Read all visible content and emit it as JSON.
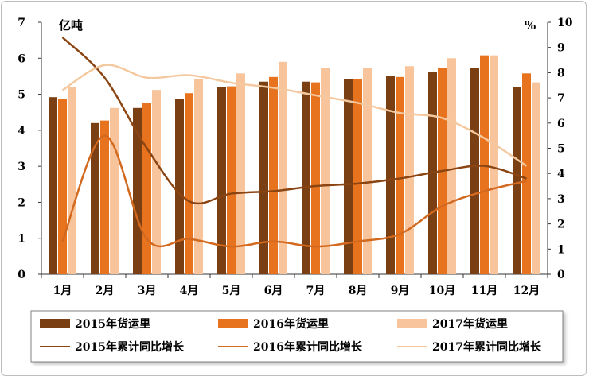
{
  "chart_data": {
    "type": "bar+line",
    "left_unit": "亿吨",
    "right_unit": "%",
    "ylim_left": [
      0,
      7
    ],
    "ylim_right": [
      0,
      10
    ],
    "left_ticks": [
      "0",
      "1",
      "2",
      "3",
      "4",
      "5",
      "6",
      "7"
    ],
    "right_ticks": [
      "0",
      "1",
      "2",
      "3",
      "4",
      "5",
      "6",
      "7",
      "8",
      "9",
      "10"
    ],
    "categories": [
      "1月",
      "2月",
      "3月",
      "4月",
      "5月",
      "6月",
      "7月",
      "8月",
      "9月",
      "10月",
      "11月",
      "12月"
    ],
    "bar_series": [
      {
        "name": "2015年货运里",
        "color": "#7a3f13",
        "values": [
          4.92,
          4.2,
          4.62,
          4.87,
          5.2,
          5.35,
          5.35,
          5.43,
          5.52,
          5.62,
          5.72,
          5.2
        ]
      },
      {
        "name": "2016年货运里",
        "color": "#e8731e",
        "values": [
          4.88,
          4.27,
          4.75,
          5.03,
          5.22,
          5.48,
          5.33,
          5.42,
          5.48,
          5.73,
          6.08,
          5.58
        ]
      },
      {
        "name": "2017年货运里",
        "color": "#f8c49c",
        "values": [
          5.2,
          4.62,
          5.12,
          5.43,
          5.58,
          5.9,
          5.73,
          5.73,
          5.78,
          6.0,
          6.08,
          5.33
        ]
      }
    ],
    "line_series": [
      {
        "name": "2015年累计同比增长",
        "color": "#8b4513",
        "values": [
          9.4,
          7.8,
          5.0,
          2.9,
          3.2,
          3.3,
          3.5,
          3.6,
          3.8,
          4.1,
          4.3,
          3.8
        ]
      },
      {
        "name": "2016年累计同比增长",
        "color": "#d2691e",
        "values": [
          1.3,
          5.5,
          1.4,
          1.4,
          1.1,
          1.3,
          1.1,
          1.3,
          1.6,
          2.7,
          3.3,
          3.7
        ]
      },
      {
        "name": "2017年累计同比增长",
        "color": "#f5c9a0",
        "values": [
          7.3,
          8.3,
          7.8,
          7.9,
          7.6,
          7.4,
          7.1,
          6.8,
          6.4,
          6.2,
          5.4,
          4.3
        ]
      }
    ]
  },
  "legend": {
    "bar_2015": "2015年货运里",
    "bar_2016": "2016年货运里",
    "bar_2017": "2017年货运里",
    "line_2015": "2015年累计同比增长",
    "line_2016": "2016年累计同比增长",
    "line_2017": "2017年累计同比增长"
  }
}
